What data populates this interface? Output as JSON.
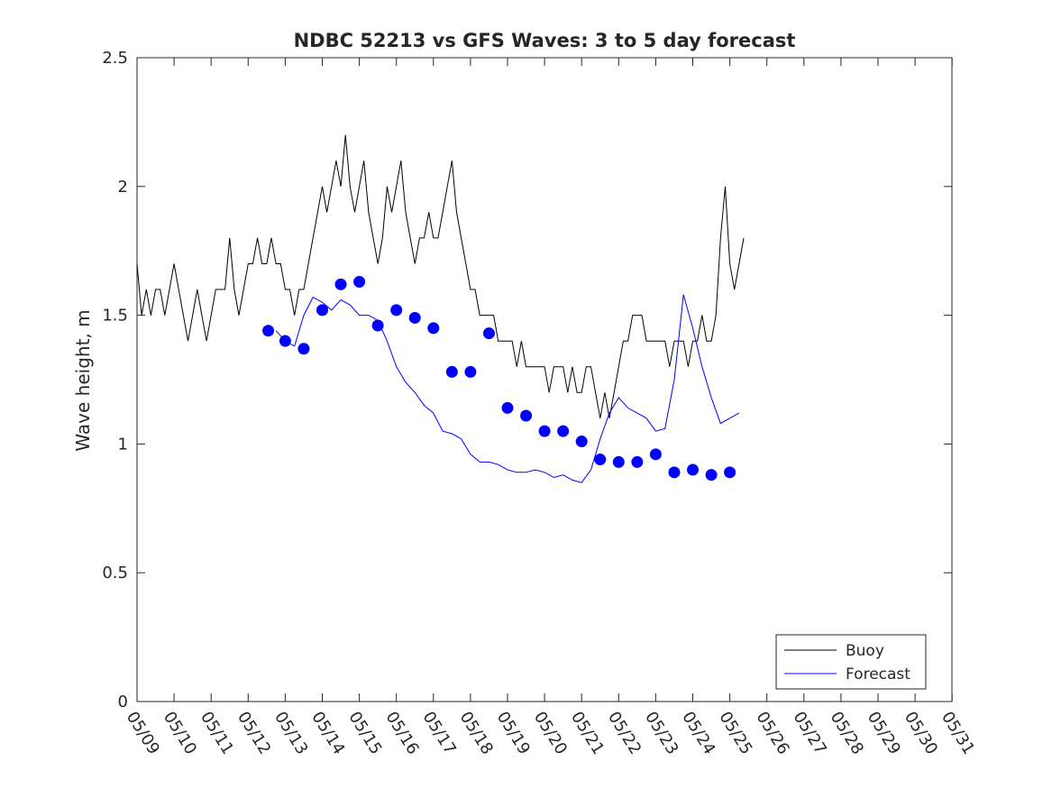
{
  "chart_data": {
    "type": "line",
    "title": "NDBC 52213 vs GFS Waves: 3 to 5 day forecast",
    "xlabel": "",
    "ylabel": "Wave height, m",
    "xlim": [
      "05/09",
      "05/31"
    ],
    "ylim": [
      0,
      2.5
    ],
    "yticks": [
      0,
      0.5,
      1,
      1.5,
      2,
      2.5
    ],
    "ytick_labels": [
      "0",
      "0.5",
      "1",
      "1.5",
      "2",
      "2.5"
    ],
    "xtick_labels": [
      "05/09",
      "05/10",
      "05/11",
      "05/12",
      "05/13",
      "05/14",
      "05/15",
      "05/16",
      "05/17",
      "05/18",
      "05/19",
      "05/20",
      "05/21",
      "05/22",
      "05/23",
      "05/24",
      "05/25",
      "05/26",
      "05/27",
      "05/28",
      "05/29",
      "05/30",
      "05/31"
    ],
    "grid": false,
    "legend_position": "bottom-right",
    "colors": {
      "buoy": "#000000",
      "forecast": "#0000ff"
    },
    "series": [
      {
        "name": "Buoy",
        "style": "line",
        "points": [
          [
            "05/09 00:00",
            1.7
          ],
          [
            "05/09 03:00",
            1.5
          ],
          [
            "05/09 06:00",
            1.6
          ],
          [
            "05/09 09:00",
            1.5
          ],
          [
            "05/09 12:00",
            1.6
          ],
          [
            "05/09 15:00",
            1.6
          ],
          [
            "05/09 18:00",
            1.5
          ],
          [
            "05/09 21:00",
            1.6
          ],
          [
            "05/10 00:00",
            1.7
          ],
          [
            "05/10 03:00",
            1.6
          ],
          [
            "05/10 06:00",
            1.5
          ],
          [
            "05/10 09:00",
            1.4
          ],
          [
            "05/10 12:00",
            1.5
          ],
          [
            "05/10 15:00",
            1.6
          ],
          [
            "05/10 18:00",
            1.5
          ],
          [
            "05/10 21:00",
            1.4
          ],
          [
            "05/11 00:00",
            1.5
          ],
          [
            "05/11 03:00",
            1.6
          ],
          [
            "05/11 06:00",
            1.6
          ],
          [
            "05/11 09:00",
            1.6
          ],
          [
            "05/11 12:00",
            1.8
          ],
          [
            "05/11 15:00",
            1.6
          ],
          [
            "05/11 18:00",
            1.5
          ],
          [
            "05/11 21:00",
            1.6
          ],
          [
            "05/12 00:00",
            1.7
          ],
          [
            "05/12 03:00",
            1.7
          ],
          [
            "05/12 06:00",
            1.8
          ],
          [
            "05/12 09:00",
            1.7
          ],
          [
            "05/12 12:00",
            1.7
          ],
          [
            "05/12 15:00",
            1.8
          ],
          [
            "05/12 18:00",
            1.7
          ],
          [
            "05/12 21:00",
            1.7
          ],
          [
            "05/13 00:00",
            1.6
          ],
          [
            "05/13 03:00",
            1.6
          ],
          [
            "05/13 06:00",
            1.5
          ],
          [
            "05/13 09:00",
            1.6
          ],
          [
            "05/13 12:00",
            1.6
          ],
          [
            "05/13 15:00",
            1.7
          ],
          [
            "05/13 18:00",
            1.8
          ],
          [
            "05/13 21:00",
            1.9
          ],
          [
            "05/14 00:00",
            2.0
          ],
          [
            "05/14 03:00",
            1.9
          ],
          [
            "05/14 06:00",
            2.0
          ],
          [
            "05/14 09:00",
            2.1
          ],
          [
            "05/14 12:00",
            2.0
          ],
          [
            "05/14 15:00",
            2.2
          ],
          [
            "05/14 18:00",
            2.0
          ],
          [
            "05/14 21:00",
            1.9
          ],
          [
            "05/15 00:00",
            2.0
          ],
          [
            "05/15 03:00",
            2.1
          ],
          [
            "05/15 06:00",
            1.9
          ],
          [
            "05/15 09:00",
            1.8
          ],
          [
            "05/15 12:00",
            1.7
          ],
          [
            "05/15 15:00",
            1.8
          ],
          [
            "05/15 18:00",
            2.0
          ],
          [
            "05/15 21:00",
            1.9
          ],
          [
            "05/16 00:00",
            2.0
          ],
          [
            "05/16 03:00",
            2.1
          ],
          [
            "05/16 06:00",
            1.9
          ],
          [
            "05/16 09:00",
            1.8
          ],
          [
            "05/16 12:00",
            1.7
          ],
          [
            "05/16 15:00",
            1.8
          ],
          [
            "05/16 18:00",
            1.8
          ],
          [
            "05/16 21:00",
            1.9
          ],
          [
            "05/17 00:00",
            1.8
          ],
          [
            "05/17 03:00",
            1.8
          ],
          [
            "05/17 06:00",
            1.9
          ],
          [
            "05/17 09:00",
            2.0
          ],
          [
            "05/17 12:00",
            2.1
          ],
          [
            "05/17 15:00",
            1.9
          ],
          [
            "05/17 18:00",
            1.8
          ],
          [
            "05/17 21:00",
            1.7
          ],
          [
            "05/18 00:00",
            1.6
          ],
          [
            "05/18 03:00",
            1.6
          ],
          [
            "05/18 06:00",
            1.5
          ],
          [
            "05/18 09:00",
            1.5
          ],
          [
            "05/18 12:00",
            1.5
          ],
          [
            "05/18 15:00",
            1.5
          ],
          [
            "05/18 18:00",
            1.4
          ],
          [
            "05/18 21:00",
            1.4
          ],
          [
            "05/19 00:00",
            1.4
          ],
          [
            "05/19 03:00",
            1.4
          ],
          [
            "05/19 06:00",
            1.3
          ],
          [
            "05/19 09:00",
            1.4
          ],
          [
            "05/19 12:00",
            1.3
          ],
          [
            "05/19 15:00",
            1.3
          ],
          [
            "05/19 18:00",
            1.3
          ],
          [
            "05/19 21:00",
            1.3
          ],
          [
            "05/20 00:00",
            1.3
          ],
          [
            "05/20 03:00",
            1.2
          ],
          [
            "05/20 06:00",
            1.3
          ],
          [
            "05/20 09:00",
            1.3
          ],
          [
            "05/20 12:00",
            1.3
          ],
          [
            "05/20 15:00",
            1.2
          ],
          [
            "05/20 18:00",
            1.3
          ],
          [
            "05/20 21:00",
            1.2
          ],
          [
            "05/21 00:00",
            1.2
          ],
          [
            "05/21 03:00",
            1.3
          ],
          [
            "05/21 06:00",
            1.3
          ],
          [
            "05/21 09:00",
            1.2
          ],
          [
            "05/21 12:00",
            1.1
          ],
          [
            "05/21 15:00",
            1.2
          ],
          [
            "05/21 18:00",
            1.1
          ],
          [
            "05/21 21:00",
            1.2
          ],
          [
            "05/22 00:00",
            1.3
          ],
          [
            "05/22 03:00",
            1.4
          ],
          [
            "05/22 06:00",
            1.4
          ],
          [
            "05/22 09:00",
            1.5
          ],
          [
            "05/22 12:00",
            1.5
          ],
          [
            "05/22 15:00",
            1.5
          ],
          [
            "05/22 18:00",
            1.4
          ],
          [
            "05/22 21:00",
            1.4
          ],
          [
            "05/23 00:00",
            1.4
          ],
          [
            "05/23 03:00",
            1.4
          ],
          [
            "05/23 06:00",
            1.4
          ],
          [
            "05/23 09:00",
            1.3
          ],
          [
            "05/23 12:00",
            1.4
          ],
          [
            "05/23 15:00",
            1.4
          ],
          [
            "05/23 18:00",
            1.4
          ],
          [
            "05/23 21:00",
            1.3
          ],
          [
            "05/24 00:00",
            1.4
          ],
          [
            "05/24 03:00",
            1.4
          ],
          [
            "05/24 06:00",
            1.5
          ],
          [
            "05/24 09:00",
            1.4
          ],
          [
            "05/24 12:00",
            1.4
          ],
          [
            "05/24 15:00",
            1.5
          ],
          [
            "05/24 18:00",
            1.8
          ],
          [
            "05/24 21:00",
            2.0
          ],
          [
            "05/25 00:00",
            1.7
          ],
          [
            "05/25 03:00",
            1.6
          ],
          [
            "05/25 06:00",
            1.7
          ],
          [
            "05/25 09:00",
            1.8
          ]
        ]
      },
      {
        "name": "Forecast",
        "style": "line",
        "points": [
          [
            "05/12 18:00",
            1.44
          ],
          [
            "05/13 00:00",
            1.4
          ],
          [
            "05/13 06:00",
            1.38
          ],
          [
            "05/13 12:00",
            1.5
          ],
          [
            "05/13 18:00",
            1.57
          ],
          [
            "05/14 00:00",
            1.55
          ],
          [
            "05/14 06:00",
            1.52
          ],
          [
            "05/14 12:00",
            1.56
          ],
          [
            "05/14 18:00",
            1.54
          ],
          [
            "05/15 00:00",
            1.5
          ],
          [
            "05/15 06:00",
            1.5
          ],
          [
            "05/15 12:00",
            1.48
          ],
          [
            "05/15 18:00",
            1.4
          ],
          [
            "05/16 00:00",
            1.3
          ],
          [
            "05/16 06:00",
            1.24
          ],
          [
            "05/16 12:00",
            1.2
          ],
          [
            "05/16 18:00",
            1.15
          ],
          [
            "05/17 00:00",
            1.12
          ],
          [
            "05/17 06:00",
            1.05
          ],
          [
            "05/17 12:00",
            1.04
          ],
          [
            "05/17 18:00",
            1.02
          ],
          [
            "05/18 00:00",
            0.96
          ],
          [
            "05/18 06:00",
            0.93
          ],
          [
            "05/18 12:00",
            0.93
          ],
          [
            "05/18 18:00",
            0.92
          ],
          [
            "05/19 00:00",
            0.9
          ],
          [
            "05/19 06:00",
            0.89
          ],
          [
            "05/19 12:00",
            0.89
          ],
          [
            "05/19 18:00",
            0.9
          ],
          [
            "05/20 00:00",
            0.89
          ],
          [
            "05/20 06:00",
            0.87
          ],
          [
            "05/20 12:00",
            0.88
          ],
          [
            "05/20 18:00",
            0.86
          ],
          [
            "05/21 00:00",
            0.85
          ],
          [
            "05/21 06:00",
            0.9
          ],
          [
            "05/21 12:00",
            1.02
          ],
          [
            "05/21 18:00",
            1.12
          ],
          [
            "05/22 00:00",
            1.18
          ],
          [
            "05/22 06:00",
            1.14
          ],
          [
            "05/22 12:00",
            1.12
          ],
          [
            "05/22 18:00",
            1.1
          ],
          [
            "05/23 00:00",
            1.05
          ],
          [
            "05/23 06:00",
            1.06
          ],
          [
            "05/23 12:00",
            1.25
          ],
          [
            "05/23 18:00",
            1.58
          ],
          [
            "05/24 00:00",
            1.45
          ],
          [
            "05/24 06:00",
            1.3
          ],
          [
            "05/24 12:00",
            1.18
          ],
          [
            "05/24 18:00",
            1.08
          ],
          [
            "05/25 00:00",
            1.1
          ],
          [
            "05/25 06:00",
            1.12
          ]
        ]
      },
      {
        "name": "",
        "style": "markers",
        "points": [
          [
            "05/12 13:00",
            1.44
          ],
          [
            "05/13 00:00",
            1.4
          ],
          [
            "05/13 12:00",
            1.37
          ],
          [
            "05/14 00:00",
            1.52
          ],
          [
            "05/14 12:00",
            1.62
          ],
          [
            "05/15 00:00",
            1.63
          ],
          [
            "05/15 12:00",
            1.46
          ],
          [
            "05/16 00:00",
            1.52
          ],
          [
            "05/16 12:00",
            1.49
          ],
          [
            "05/17 00:00",
            1.45
          ],
          [
            "05/17 12:00",
            1.28
          ],
          [
            "05/18 00:00",
            1.28
          ],
          [
            "05/18 12:00",
            1.43
          ],
          [
            "05/19 00:00",
            1.14
          ],
          [
            "05/19 12:00",
            1.11
          ],
          [
            "05/20 00:00",
            1.05
          ],
          [
            "05/20 12:00",
            1.05
          ],
          [
            "05/21 00:00",
            1.01
          ],
          [
            "05/21 12:00",
            0.94
          ],
          [
            "05/22 00:00",
            0.93
          ],
          [
            "05/22 12:00",
            0.93
          ],
          [
            "05/23 00:00",
            0.96
          ],
          [
            "05/23 12:00",
            0.89
          ],
          [
            "05/24 00:00",
            0.9
          ],
          [
            "05/24 12:00",
            0.88
          ],
          [
            "05/25 00:00",
            0.89
          ]
        ]
      }
    ]
  }
}
